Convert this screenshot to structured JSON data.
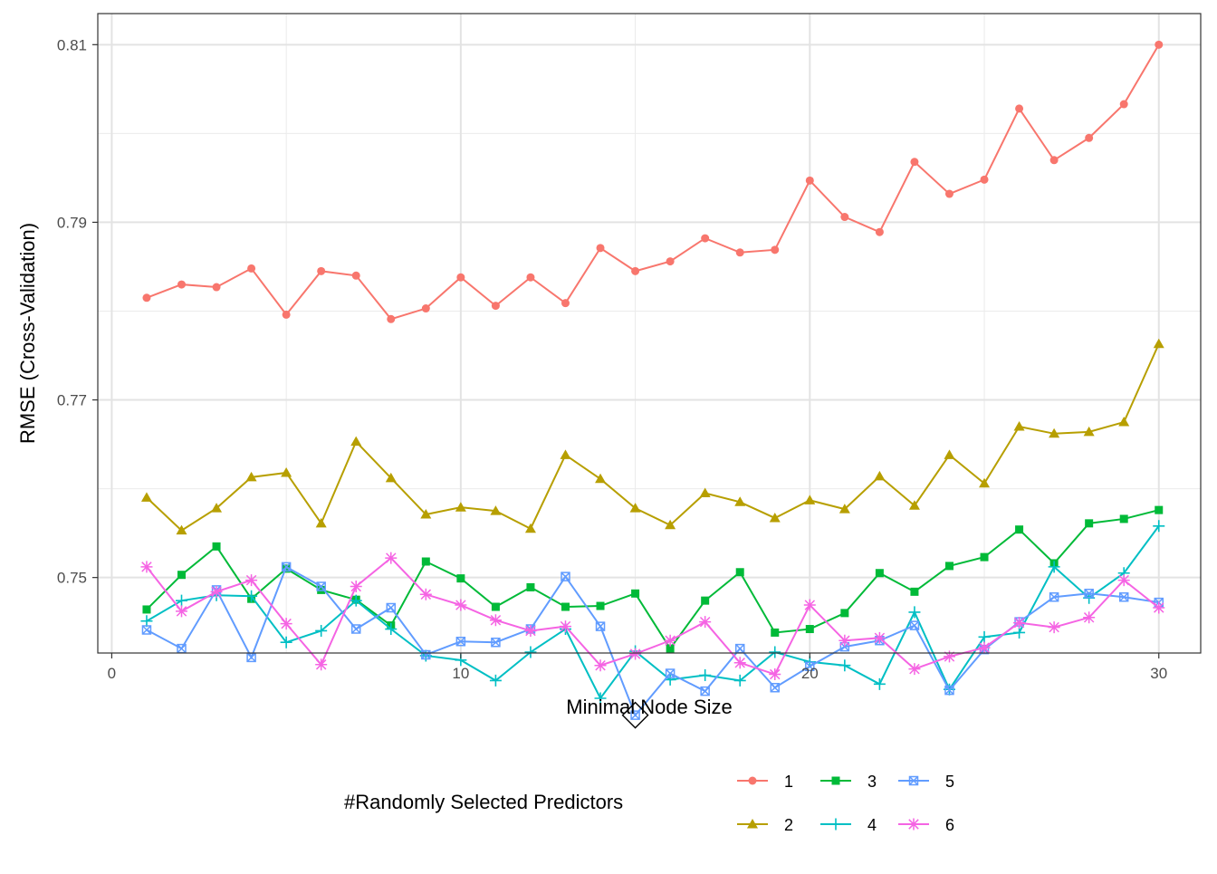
{
  "chart_data": {
    "type": "line",
    "xlabel": "Minimal Node Size",
    "ylabel": "RMSE (Cross-Validation)",
    "xlim": [
      -0.4,
      31.2
    ],
    "ylim": [
      0.7415,
      0.8135
    ],
    "x_ticks": [
      0,
      10,
      20,
      30
    ],
    "y_ticks": [
      0.75,
      0.77,
      0.79,
      0.81
    ],
    "x_tick_labels": [
      "0",
      "10",
      "20",
      "30"
    ],
    "y_tick_labels": [
      "0.75",
      "0.77",
      "0.79",
      "0.81"
    ],
    "grid": true,
    "legend_position": "bottom",
    "legend_title": "#Randomly Selected Predictors",
    "x": [
      1,
      2,
      3,
      4,
      5,
      6,
      7,
      8,
      9,
      10,
      11,
      12,
      13,
      14,
      15,
      16,
      17,
      18,
      19,
      20,
      21,
      22,
      23,
      24,
      25,
      26,
      27,
      28,
      29,
      30
    ],
    "series": [
      {
        "name": "1",
        "color": "#f8766d",
        "marker": "circle",
        "values": [
          0.7815,
          0.783,
          0.7827,
          0.7848,
          0.7796,
          0.7845,
          0.784,
          0.7791,
          0.7803,
          0.7838,
          0.7806,
          0.7838,
          0.7809,
          0.7871,
          0.7845,
          0.7856,
          0.7882,
          0.7866,
          0.7869,
          0.7947,
          0.7906,
          0.7889,
          0.7968,
          0.7932,
          0.7948,
          0.8028,
          0.797,
          0.7995,
          0.8033,
          0.81
        ]
      },
      {
        "name": "2",
        "color": "#b79f00",
        "marker": "triangle",
        "values": [
          0.759,
          0.7553,
          0.7578,
          0.7613,
          0.7618,
          0.7561,
          0.7653,
          0.7612,
          0.7571,
          0.7579,
          0.7575,
          0.7555,
          0.7638,
          0.7611,
          0.7578,
          0.7559,
          0.7595,
          0.7585,
          0.7567,
          0.7587,
          0.7577,
          0.7614,
          0.7581,
          0.7638,
          0.7606,
          0.767,
          0.7662,
          0.7664,
          0.7675,
          0.7763
        ]
      },
      {
        "name": "3",
        "color": "#00ba38",
        "marker": "square",
        "values": [
          0.7464,
          0.7503,
          0.7535,
          0.7476,
          0.751,
          0.7486,
          0.7475,
          0.7446,
          0.7518,
          0.7499,
          0.7467,
          0.7489,
          0.7467,
          0.7468,
          0.7482,
          0.742,
          0.7474,
          0.7506,
          0.7438,
          0.7442,
          0.746,
          0.7505,
          0.7484,
          0.7513,
          0.7523,
          0.7554,
          0.7516,
          0.7561,
          0.7566,
          0.7576
        ]
      },
      {
        "name": "4",
        "color": "#00bfc4",
        "marker": "plus",
        "values": [
          0.7451,
          0.7474,
          0.748,
          0.7479,
          0.7427,
          0.744,
          0.7474,
          0.7442,
          0.7412,
          0.7407,
          0.7384,
          0.7416,
          0.7442,
          0.7364,
          0.7417,
          0.7385,
          0.739,
          0.7384,
          0.7416,
          0.7405,
          0.7401,
          0.738,
          0.7461,
          0.7374,
          0.7433,
          0.7438,
          0.7512,
          0.7477,
          0.7505,
          0.7558
        ]
      },
      {
        "name": "5",
        "color": "#619cff",
        "marker": "square-x",
        "values": [
          0.7441,
          0.742,
          0.7486,
          0.741,
          0.7512,
          0.749,
          0.7442,
          0.7466,
          0.7413,
          0.7428,
          0.7427,
          0.7442,
          0.7501,
          0.7445,
          0.7345,
          0.7392,
          0.7372,
          0.742,
          0.7376,
          0.74,
          0.7422,
          0.7429,
          0.7446,
          0.7373,
          0.7419,
          0.745,
          0.7478,
          0.7482,
          0.7478,
          0.7472
        ]
      },
      {
        "name": "6",
        "color": "#f564e3",
        "marker": "asterisk",
        "values": [
          0.7512,
          0.7462,
          0.7484,
          0.7497,
          0.7448,
          0.7402,
          0.749,
          0.7522,
          0.7481,
          0.7469,
          0.7452,
          0.744,
          0.7445,
          0.7401,
          0.7414,
          0.7429,
          0.745,
          0.7404,
          0.7391,
          0.7469,
          0.7429,
          0.7432,
          0.7397,
          0.7411,
          0.7421,
          0.7449,
          0.7444,
          0.7455,
          0.7497,
          0.7466
        ]
      }
    ],
    "annotations": [
      {
        "type": "diamond-marker",
        "x": 15,
        "y": 0.7345,
        "note_series": "5"
      }
    ]
  }
}
